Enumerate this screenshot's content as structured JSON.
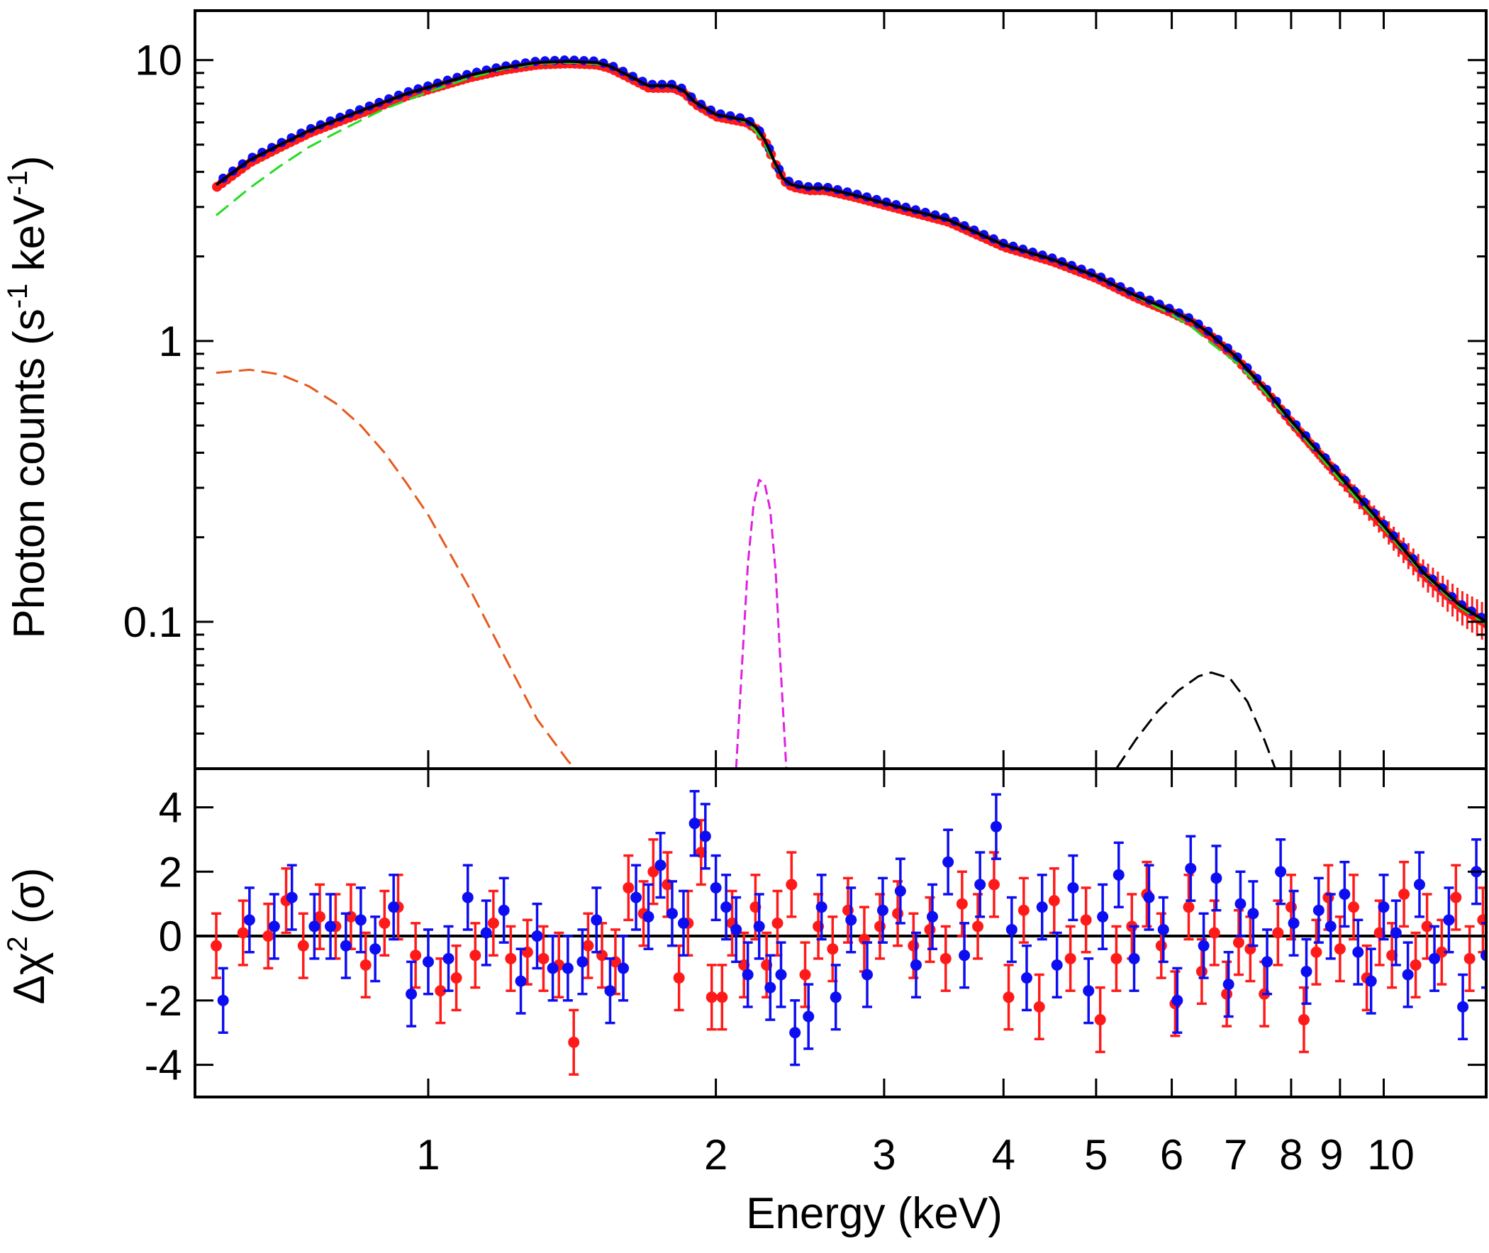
{
  "chart_data": [
    {
      "type": "line",
      "panel": "spectrum",
      "ylabel_main": "Photon counts (s",
      "ylabel_sup1": "-1",
      "ylabel_mid": " keV",
      "ylabel_sup2": "-1",
      "ylabel_end": ")",
      "xscale": "log",
      "yscale": "log",
      "xlim": [
        0.57,
        12.8
      ],
      "ylim": [
        0.03,
        15
      ],
      "yticks_major": [
        0.1,
        1,
        10
      ],
      "ytick_labels": [
        "0.1",
        "1",
        "10"
      ],
      "colors": {
        "data1": "#ff1a1a",
        "data2": "#0d0df2",
        "total": "#000000",
        "comp_green": "#22dd22",
        "comp_orange": "#e8581c",
        "comp_magenta": "#e020e0",
        "comp_black": "#000000"
      },
      "series": [
        {
          "name": "total-model",
          "style": "solid",
          "x": [
            0.6,
            0.65,
            0.7,
            0.75,
            0.8,
            0.85,
            0.9,
            0.95,
            1.0,
            1.1,
            1.2,
            1.3,
            1.4,
            1.5,
            1.55,
            1.6,
            1.7,
            1.8,
            1.85,
            1.9,
            2.0,
            2.1,
            2.15,
            2.2,
            2.25,
            2.3,
            2.35,
            2.4,
            2.5,
            2.6,
            2.8,
            3.0,
            3.5,
            4.0,
            4.5,
            5.0,
            5.5,
            6.0,
            6.3,
            6.6,
            7.0,
            7.5,
            8.0,
            9.0,
            10.0,
            11.0,
            12.0,
            12.8
          ],
          "y": [
            3.6,
            4.4,
            5.0,
            5.6,
            6.1,
            6.6,
            7.1,
            7.6,
            8.0,
            8.8,
            9.4,
            9.8,
            9.9,
            9.8,
            9.5,
            9.0,
            8.1,
            8.1,
            7.8,
            7.1,
            6.4,
            6.2,
            6.1,
            5.8,
            5.2,
            4.4,
            3.8,
            3.6,
            3.5,
            3.5,
            3.3,
            3.1,
            2.7,
            2.2,
            1.95,
            1.7,
            1.45,
            1.28,
            1.18,
            1.05,
            0.88,
            0.68,
            0.52,
            0.33,
            0.22,
            0.15,
            0.115,
            0.1
          ]
        },
        {
          "name": "component-green",
          "style": "dashed",
          "x": [
            0.6,
            0.65,
            0.7,
            0.75,
            0.8,
            0.85,
            0.9,
            0.95,
            1.0,
            1.1,
            1.2,
            1.3,
            1.4,
            1.5,
            1.55,
            1.6,
            1.7,
            1.8,
            1.85,
            1.9,
            2.0,
            2.1,
            2.15,
            2.2,
            2.25,
            2.3,
            2.35,
            2.4,
            2.5,
            2.6,
            2.8,
            3.0,
            3.5,
            4.0,
            4.5,
            5.0,
            5.5,
            6.0,
            6.3,
            6.6,
            7.0,
            7.5,
            8.0,
            9.0,
            10.0,
            11.0,
            12.0,
            12.8
          ],
          "y": [
            2.8,
            3.5,
            4.2,
            4.9,
            5.5,
            6.1,
            6.7,
            7.2,
            7.7,
            8.6,
            9.3,
            9.7,
            9.8,
            9.7,
            9.5,
            9.0,
            8.1,
            8.1,
            7.8,
            7.1,
            6.4,
            6.2,
            6.0,
            5.6,
            5.0,
            4.3,
            3.8,
            3.6,
            3.5,
            3.5,
            3.3,
            3.1,
            2.7,
            2.2,
            1.95,
            1.7,
            1.44,
            1.24,
            1.12,
            0.98,
            0.84,
            0.66,
            0.51,
            0.32,
            0.215,
            0.148,
            0.113,
            0.098
          ]
        },
        {
          "name": "component-orange",
          "style": "dashed",
          "x": [
            0.6,
            0.65,
            0.7,
            0.75,
            0.8,
            0.85,
            0.9,
            0.95,
            1.0,
            1.1,
            1.2,
            1.3,
            1.4,
            1.45
          ],
          "y": [
            0.77,
            0.79,
            0.76,
            0.69,
            0.6,
            0.5,
            0.4,
            0.31,
            0.24,
            0.135,
            0.076,
            0.045,
            0.032,
            0.028
          ]
        },
        {
          "name": "component-magenta",
          "style": "dashed",
          "x": [
            2.1,
            2.13,
            2.16,
            2.19,
            2.22,
            2.25,
            2.28,
            2.31,
            2.34,
            2.37
          ],
          "y": [
            0.03,
            0.07,
            0.16,
            0.26,
            0.32,
            0.31,
            0.25,
            0.15,
            0.065,
            0.03
          ]
        },
        {
          "name": "component-black",
          "style": "dashed",
          "x": [
            5.25,
            5.5,
            5.8,
            6.1,
            6.4,
            6.6,
            6.9,
            7.2,
            7.5,
            7.7
          ],
          "y": [
            0.03,
            0.038,
            0.048,
            0.057,
            0.064,
            0.066,
            0.063,
            0.052,
            0.038,
            0.03
          ]
        }
      ]
    },
    {
      "type": "scatter",
      "panel": "residuals",
      "ylabel": "Δχ",
      "ylabel_sup": "2",
      "ylabel_tail": " (σ)",
      "xlabel": "Energy (keV)",
      "xscale": "log",
      "xlim": [
        0.57,
        12.8
      ],
      "ylim": [
        -5,
        5.2
      ],
      "yticks": [
        -4,
        -2,
        0,
        2,
        4
      ],
      "ytick_labels": [
        "-4",
        "-2",
        "0",
        "2",
        "4"
      ],
      "xticks": [
        1,
        2,
        3,
        4,
        5,
        6,
        7,
        8,
        9,
        10
      ],
      "xtick_labels": [
        "1",
        "2",
        "3",
        "4",
        "5",
        "6",
        "7",
        "8",
        "9",
        "10"
      ],
      "zero_line": 0,
      "series": [
        {
          "name": "dataset-1 (red)",
          "x": [
            0.6,
            0.64,
            0.68,
            0.71,
            0.74,
            0.77,
            0.8,
            0.83,
            0.86,
            0.9,
            0.93,
            0.97,
            1.03,
            1.07,
            1.12,
            1.17,
            1.22,
            1.27,
            1.32,
            1.37,
            1.42,
            1.47,
            1.52,
            1.57,
            1.62,
            1.68,
            1.72,
            1.78,
            1.83,
            1.87,
            1.93,
            1.98,
            2.03,
            2.08,
            2.14,
            2.2,
            2.26,
            2.32,
            2.4,
            2.48,
            2.56,
            2.65,
            2.75,
            2.86,
            2.97,
            3.1,
            3.22,
            3.35,
            3.48,
            3.62,
            3.76,
            3.91,
            4.05,
            4.2,
            4.36,
            4.52,
            4.7,
            4.88,
            5.05,
            5.25,
            5.45,
            5.65,
            5.85,
            6.05,
            6.25,
            6.45,
            6.65,
            6.85,
            7.05,
            7.25,
            7.5,
            7.75,
            8.0,
            8.25,
            8.5,
            8.75,
            9.0,
            9.3,
            9.6,
            9.9,
            10.2,
            10.5,
            10.8,
            11.1,
            11.5,
            11.9,
            12.3,
            12.7
          ],
          "y": [
            -0.3,
            0.1,
            0.0,
            1.1,
            -0.3,
            0.6,
            0.3,
            0.6,
            -0.9,
            0.4,
            0.9,
            -0.6,
            -1.7,
            -1.3,
            -0.6,
            0.4,
            -0.7,
            -0.5,
            -0.7,
            -0.9,
            -3.3,
            -0.3,
            -0.6,
            -0.8,
            1.5,
            0.7,
            2.0,
            1.6,
            -1.3,
            0.4,
            2.6,
            -1.9,
            -1.9,
            0.4,
            -0.9,
            0.9,
            -0.9,
            0.4,
            1.6,
            -1.2,
            0.3,
            -0.4,
            0.8,
            -0.1,
            0.3,
            0.7,
            -0.3,
            0.2,
            -0.7,
            1.0,
            0.3,
            1.6,
            -1.9,
            0.8,
            -2.2,
            1.1,
            -0.7,
            0.5,
            -2.6,
            -0.7,
            0.3,
            1.3,
            -0.3,
            -2.1,
            0.9,
            -1.1,
            0.1,
            -1.8,
            -0.2,
            -0.4,
            -1.8,
            0.1,
            0.9,
            -2.6,
            -0.5,
            1.2,
            -0.4,
            0.9,
            -1.3,
            0.1,
            -0.6,
            1.3,
            -0.9,
            0.3,
            -0.5,
            1.2,
            -0.7,
            0.5
          ]
        },
        {
          "name": "dataset-2 (blue)",
          "x": [
            0.61,
            0.65,
            0.69,
            0.72,
            0.76,
            0.79,
            0.82,
            0.85,
            0.88,
            0.92,
            0.96,
            1.0,
            1.05,
            1.1,
            1.15,
            1.2,
            1.25,
            1.3,
            1.35,
            1.4,
            1.45,
            1.5,
            1.55,
            1.6,
            1.65,
            1.7,
            1.75,
            1.8,
            1.85,
            1.9,
            1.95,
            2.0,
            2.05,
            2.1,
            2.16,
            2.22,
            2.28,
            2.34,
            2.42,
            2.5,
            2.58,
            2.67,
            2.77,
            2.88,
            2.99,
            3.12,
            3.24,
            3.37,
            3.5,
            3.64,
            3.78,
            3.93,
            4.08,
            4.23,
            4.39,
            4.55,
            4.73,
            4.91,
            5.08,
            5.28,
            5.48,
            5.68,
            5.88,
            6.08,
            6.28,
            6.48,
            6.68,
            6.88,
            7.08,
            7.3,
            7.55,
            7.8,
            8.05,
            8.3,
            8.55,
            8.8,
            9.1,
            9.4,
            9.7,
            10.0,
            10.3,
            10.6,
            10.9,
            11.3,
            11.7,
            12.1,
            12.5,
            12.8
          ],
          "y": [
            -2.0,
            0.5,
            0.3,
            1.2,
            0.3,
            0.3,
            -0.3,
            0.5,
            -0.4,
            0.9,
            -1.8,
            -0.8,
            -0.7,
            1.2,
            0.1,
            0.8,
            -1.4,
            0.0,
            -1.0,
            -1.0,
            -0.8,
            0.5,
            -1.7,
            -1.0,
            1.2,
            0.6,
            2.2,
            0.7,
            0.4,
            3.5,
            3.1,
            1.5,
            0.9,
            0.2,
            -1.2,
            0.3,
            -1.6,
            -1.2,
            -3.0,
            -2.5,
            0.9,
            -1.9,
            0.5,
            -1.2,
            0.8,
            1.4,
            -0.9,
            0.6,
            2.3,
            -0.6,
            1.6,
            3.4,
            0.2,
            -1.3,
            0.9,
            -0.9,
            1.5,
            -1.7,
            0.6,
            1.9,
            -0.7,
            1.2,
            0.2,
            -2.0,
            2.1,
            -0.3,
            1.8,
            -1.5,
            1.0,
            0.7,
            -0.8,
            2.0,
            0.4,
            -1.1,
            0.8,
            0.3,
            1.3,
            -0.5,
            -1.4,
            0.9,
            0.1,
            -1.2,
            1.6,
            -0.7,
            0.5,
            -2.2,
            2.0,
            -0.6
          ]
        }
      ]
    }
  ]
}
